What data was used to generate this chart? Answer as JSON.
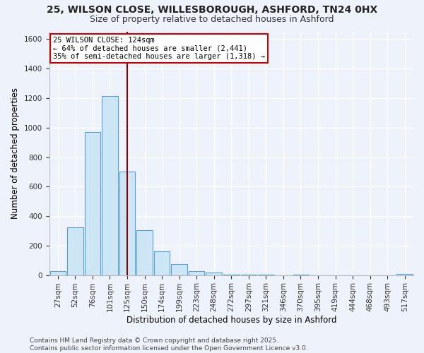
{
  "title": "25, WILSON CLOSE, WILLESBOROUGH, ASHFORD, TN24 0HX",
  "subtitle": "Size of property relative to detached houses in Ashford",
  "xlabel": "Distribution of detached houses by size in Ashford",
  "ylabel": "Number of detached properties",
  "bar_color": "#cde6f5",
  "bar_edge_color": "#5a9fd4",
  "background_color": "#eef2fb",
  "grid_color": "#ffffff",
  "categories": [
    "27sqm",
    "52sqm",
    "76sqm",
    "101sqm",
    "125sqm",
    "150sqm",
    "174sqm",
    "199sqm",
    "223sqm",
    "248sqm",
    "272sqm",
    "297sqm",
    "321sqm",
    "346sqm",
    "370sqm",
    "395sqm",
    "419sqm",
    "444sqm",
    "468sqm",
    "493sqm",
    "517sqm"
  ],
  "values": [
    25,
    325,
    970,
    1215,
    700,
    305,
    160,
    75,
    25,
    15,
    5,
    2,
    1,
    0,
    1,
    0,
    0,
    0,
    0,
    0,
    10
  ],
  "ylim": [
    0,
    1650
  ],
  "yticks": [
    0,
    200,
    400,
    600,
    800,
    1000,
    1200,
    1400,
    1600
  ],
  "red_line_x": 4,
  "red_line_color": "#8b0000",
  "annotation_title": "25 WILSON CLOSE: 124sqm",
  "annotation_line1": "← 64% of detached houses are smaller (2,441)",
  "annotation_line2": "35% of semi-detached houses are larger (1,318) →",
  "annotation_box_color": "#ffffff",
  "annotation_border_color": "#cc0000",
  "footer_line1": "Contains HM Land Registry data © Crown copyright and database right 2025.",
  "footer_line2": "Contains public sector information licensed under the Open Government Licence v3.0.",
  "title_fontsize": 10,
  "subtitle_fontsize": 9,
  "axis_label_fontsize": 8.5,
  "tick_fontsize": 7.5,
  "annotation_fontsize": 7.5,
  "footer_fontsize": 6.5
}
